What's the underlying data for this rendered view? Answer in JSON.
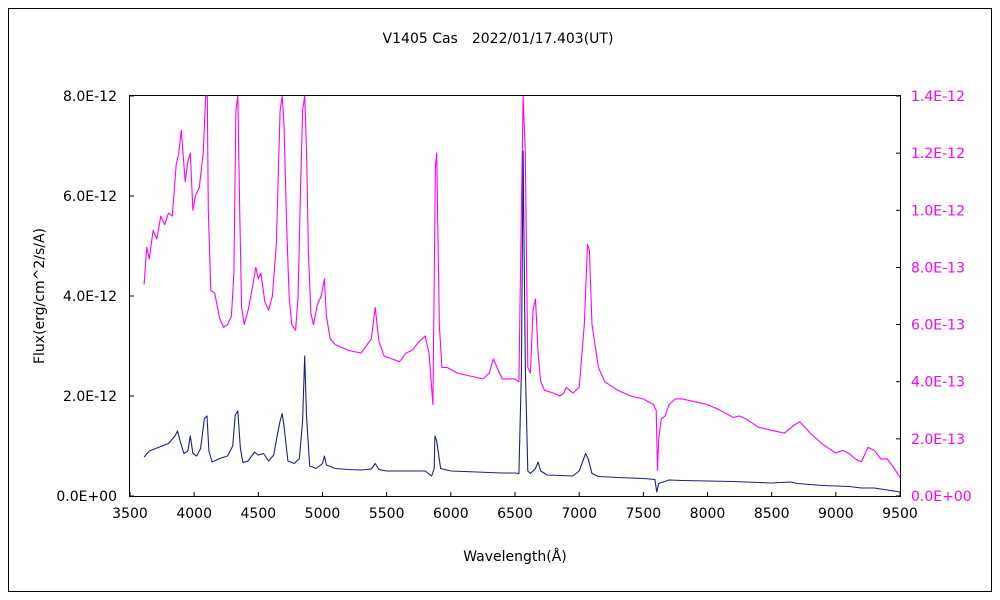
{
  "chart_data": {
    "type": "line",
    "title": "V1405 Cas　2022/01/17.403(UT)",
    "xlabel": "Wavelength(Å)",
    "ylabel": "Flux(erg/cm^2/s/A)",
    "xlim": [
      3500,
      9500
    ],
    "ylim_left": [
      0,
      8e-12
    ],
    "ylim_right": [
      0,
      1.4e-12
    ],
    "x_ticks": [
      "3500",
      "4000",
      "4500",
      "5000",
      "5500",
      "6000",
      "6500",
      "7000",
      "7500",
      "8000",
      "8500",
      "9000",
      "9500"
    ],
    "y_left_ticks": [
      "0.0E+00",
      "2.0E-12",
      "4.0E-12",
      "6.0E-12",
      "8.0E-12"
    ],
    "y_right_ticks": [
      "0.0E+00",
      "2.0E-13",
      "4.0E-13",
      "6.0E-13",
      "8.0E-13",
      "1.0E-12",
      "1.2E-12",
      "1.4E-12"
    ],
    "grid": false,
    "legend": "none",
    "series": [
      {
        "axis": "left",
        "color": "#1a237e",
        "x": [
          3610,
          3650,
          3700,
          3750,
          3800,
          3850,
          3870,
          3890,
          3920,
          3950,
          3970,
          3990,
          4020,
          4050,
          4080,
          4100,
          4115,
          4140,
          4200,
          4260,
          4300,
          4320,
          4340,
          4360,
          4380,
          4420,
          4470,
          4500,
          4540,
          4580,
          4620,
          4650,
          4670,
          4686,
          4700,
          4730,
          4780,
          4820,
          4845,
          4861,
          4875,
          4900,
          4950,
          5000,
          5015,
          5030,
          5100,
          5200,
          5300,
          5380,
          5411,
          5440,
          5500,
          5600,
          5700,
          5800,
          5850,
          5870,
          5876,
          5890,
          5920,
          6000,
          6100,
          6200,
          6300,
          6400,
          6500,
          6530,
          6550,
          6563,
          6580,
          6600,
          6620,
          6660,
          6680,
          6700,
          6750,
          6850,
          6950,
          7000,
          7050,
          7070,
          7100,
          7150,
          7300,
          7400,
          7500,
          7590,
          7605,
          7620,
          7700,
          7800,
          8000,
          8200,
          8400,
          8500,
          8650,
          8700,
          8800,
          8900,
          9000,
          9100,
          9200,
          9300,
          9400,
          9500
        ],
        "values": [
          7.8e-13,
          9e-13,
          9.5e-13,
          1e-12,
          1.05e-12,
          1.2e-12,
          1.3e-12,
          1.1e-12,
          8.5e-13,
          9e-13,
          1.2e-12,
          8.5e-13,
          8e-13,
          9.5e-13,
          1.55e-12,
          1.6e-12,
          9e-13,
          6.8e-13,
          7.5e-13,
          8e-13,
          1e-12,
          1.62e-12,
          1.7e-12,
          9.5e-13,
          6.7e-13,
          7e-13,
          8.8e-13,
          8.2e-13,
          8.5e-13,
          7e-13,
          8.2e-13,
          1.25e-12,
          1.5e-12,
          1.65e-12,
          1.4e-12,
          7e-13,
          6.5e-13,
          7.5e-13,
          1.5e-12,
          2.8e-12,
          1.6e-12,
          6e-13,
          5.5e-13,
          6.5e-13,
          8e-13,
          6.2e-13,
          5.5e-13,
          5.3e-13,
          5.2e-13,
          5.4e-13,
          6.5e-13,
          5.3e-13,
          5e-13,
          5e-13,
          5e-13,
          5e-13,
          4e-13,
          5.5e-13,
          1.2e-12,
          1.1e-12,
          5.5e-13,
          5e-13,
          4.9e-13,
          4.8e-13,
          4.7e-13,
          4.6e-13,
          4.6e-13,
          4.5e-13,
          2.5e-12,
          6.9e-12,
          2.6e-12,
          5e-13,
          4.5e-13,
          5.5e-13,
          6.8e-13,
          5e-13,
          4.2e-13,
          4.1e-13,
          4e-13,
          5e-13,
          8.5e-13,
          7.5e-13,
          4.5e-13,
          3.9e-13,
          3.7e-13,
          3.6e-13,
          3.5e-13,
          3.3e-13,
          8e-14,
          2.5e-13,
          3.2e-13,
          3.1e-13,
          3e-13,
          2.9e-13,
          2.7e-13,
          2.6e-13,
          2.8e-13,
          2.5e-13,
          2.3e-13,
          2.1e-13,
          2e-13,
          1.9e-13,
          1.6e-13,
          1.6e-13,
          1.2e-13,
          8e-14
        ]
      },
      {
        "axis": "right",
        "color": "#ff00ff",
        "x": [
          3610,
          3630,
          3650,
          3680,
          3710,
          3740,
          3770,
          3800,
          3830,
          3860,
          3880,
          3900,
          3930,
          3950,
          3970,
          3990,
          4010,
          4040,
          4070,
          4090,
          4102,
          4110,
          4130,
          4160,
          4200,
          4230,
          4260,
          4290,
          4310,
          4325,
          4340,
          4355,
          4370,
          4390,
          4420,
          4450,
          4480,
          4500,
          4520,
          4550,
          4580,
          4610,
          4640,
          4660,
          4670,
          4686,
          4700,
          4720,
          4740,
          4760,
          4790,
          4810,
          4830,
          4845,
          4861,
          4876,
          4890,
          4910,
          4930,
          4960,
          4990,
          5015,
          5030,
          5060,
          5100,
          5200,
          5300,
          5380,
          5411,
          5440,
          5480,
          5540,
          5600,
          5650,
          5700,
          5750,
          5800,
          5830,
          5860,
          5880,
          5890,
          5910,
          5930,
          5970,
          6050,
          6150,
          6250,
          6300,
          6330,
          6400,
          6500,
          6530,
          6550,
          6563,
          6580,
          6600,
          6620,
          6640,
          6660,
          6680,
          6700,
          6730,
          6800,
          6850,
          6880,
          6900,
          6950,
          7000,
          7040,
          7065,
          7080,
          7100,
          7150,
          7200,
          7300,
          7400,
          7500,
          7580,
          7600,
          7610,
          7620,
          7640,
          7670,
          7700,
          7750,
          7800,
          7900,
          8000,
          8100,
          8200,
          8250,
          8300,
          8400,
          8500,
          8600,
          8680,
          8720,
          8800,
          8900,
          9000,
          9050,
          9100,
          9150,
          9200,
          9250,
          9300,
          9350,
          9400,
          9450,
          9500
        ],
        "values": [
          7.4e-13,
          8.7e-13,
          8.3e-13,
          9.3e-13,
          9e-13,
          9.8e-13,
          9.5e-13,
          9.9e-13,
          9.8e-13,
          1.16e-12,
          1.2e-12,
          1.28e-12,
          1.1e-12,
          1.17e-12,
          1.2e-12,
          1e-12,
          1.05e-12,
          1.08e-12,
          1.2e-12,
          1.4e-12,
          1.4e-12,
          1e-12,
          7.2e-13,
          7.1e-13,
          6.2e-13,
          5.9e-13,
          6e-13,
          6.3e-13,
          7.8e-13,
          1.35e-12,
          1.4e-12,
          1e-12,
          6.6e-13,
          6e-13,
          6.5e-13,
          7.2e-13,
          8e-13,
          7.6e-13,
          7.8e-13,
          6.8e-13,
          6.5e-13,
          7e-13,
          8.8e-13,
          1.2e-12,
          1.35e-12,
          1.4e-12,
          1.3e-12,
          9.5e-13,
          7e-13,
          6e-13,
          5.8e-13,
          7e-13,
          1.1e-12,
          1.35e-12,
          1.4e-12,
          1.2e-12,
          8.5e-13,
          6.4e-13,
          6e-13,
          6.7e-13,
          7e-13,
          7.6e-13,
          6.3e-13,
          5.5e-13,
          5.3e-13,
          5.1e-13,
          5e-13,
          5.5e-13,
          6.6e-13,
          5.4e-13,
          4.9e-13,
          4.8e-13,
          4.7e-13,
          5e-13,
          5.1e-13,
          5.4e-13,
          5.6e-13,
          5e-13,
          3.2e-13,
          1.15e-12,
          1.2e-12,
          6e-13,
          4.5e-13,
          4.5e-13,
          4.3e-13,
          4.2e-13,
          4.1e-13,
          4.3e-13,
          4.8e-13,
          4.1e-13,
          4.1e-13,
          4e-13,
          1e-12,
          1.4e-12,
          1.2e-12,
          4.5e-13,
          4.3e-13,
          6.5e-13,
          6.9e-13,
          5e-13,
          4e-13,
          3.7e-13,
          3.6e-13,
          3.5e-13,
          3.6e-13,
          3.8e-13,
          3.6e-13,
          3.8e-13,
          6e-13,
          8.8e-13,
          8.6e-13,
          6e-13,
          4.5e-13,
          4e-13,
          3.7e-13,
          3.5e-13,
          3.4e-13,
          3.2e-13,
          3e-13,
          9e-14,
          2e-13,
          2.7e-13,
          2.8e-13,
          3.2e-13,
          3.4e-13,
          3.4e-13,
          3.3e-13,
          3.2e-13,
          3e-13,
          2.75e-13,
          2.8e-13,
          2.7e-13,
          2.4e-13,
          2.3e-13,
          2.2e-13,
          2.5e-13,
          2.6e-13,
          2.2e-13,
          1.8e-13,
          1.5e-13,
          1.6e-13,
          1.5e-13,
          1.3e-13,
          1.2e-13,
          1.7e-13,
          1.6e-13,
          1.3e-13,
          1.3e-13,
          1e-13,
          6.5e-14
        ]
      }
    ]
  }
}
